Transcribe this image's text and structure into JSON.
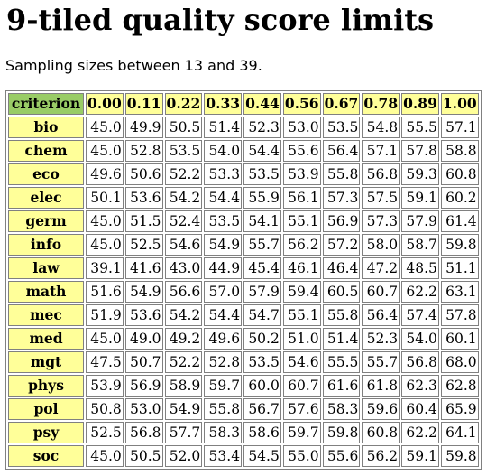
{
  "title": "9-tiled quality score limits",
  "subtitle": "Sampling sizes between 13 and 39.",
  "table": {
    "corner_header": "criterion",
    "columns": [
      "0.00",
      "0.11",
      "0.22",
      "0.33",
      "0.44",
      "0.56",
      "0.67",
      "0.78",
      "0.89",
      "1.00"
    ],
    "rows": [
      {
        "label": "bio",
        "values": [
          "45.0",
          "49.9",
          "50.5",
          "51.4",
          "52.3",
          "53.0",
          "53.5",
          "54.8",
          "55.5",
          "57.1"
        ]
      },
      {
        "label": "chem",
        "values": [
          "45.0",
          "52.8",
          "53.5",
          "54.0",
          "54.4",
          "55.6",
          "56.4",
          "57.1",
          "57.8",
          "58.8"
        ]
      },
      {
        "label": "eco",
        "values": [
          "49.6",
          "50.6",
          "52.2",
          "53.3",
          "53.5",
          "53.9",
          "55.8",
          "56.8",
          "59.3",
          "60.8"
        ]
      },
      {
        "label": "elec",
        "values": [
          "50.1",
          "53.6",
          "54.2",
          "54.4",
          "55.9",
          "56.1",
          "57.3",
          "57.5",
          "59.1",
          "60.2"
        ]
      },
      {
        "label": "germ",
        "values": [
          "45.0",
          "51.5",
          "52.4",
          "53.5",
          "54.1",
          "55.1",
          "56.9",
          "57.3",
          "57.9",
          "61.4"
        ]
      },
      {
        "label": "info",
        "values": [
          "45.0",
          "52.5",
          "54.6",
          "54.9",
          "55.7",
          "56.2",
          "57.2",
          "58.0",
          "58.7",
          "59.8"
        ]
      },
      {
        "label": "law",
        "values": [
          "39.1",
          "41.6",
          "43.0",
          "44.9",
          "45.4",
          "46.1",
          "46.4",
          "47.2",
          "48.5",
          "51.1"
        ]
      },
      {
        "label": "math",
        "values": [
          "51.6",
          "54.9",
          "56.6",
          "57.0",
          "57.9",
          "59.4",
          "60.5",
          "60.7",
          "62.2",
          "63.1"
        ]
      },
      {
        "label": "mec",
        "values": [
          "51.9",
          "53.6",
          "54.2",
          "54.4",
          "54.7",
          "55.1",
          "55.8",
          "56.4",
          "57.4",
          "57.8"
        ]
      },
      {
        "label": "med",
        "values": [
          "45.0",
          "49.0",
          "49.2",
          "49.6",
          "50.2",
          "51.0",
          "51.4",
          "52.3",
          "54.0",
          "60.1"
        ]
      },
      {
        "label": "mgt",
        "values": [
          "47.5",
          "50.7",
          "52.2",
          "52.8",
          "53.5",
          "54.6",
          "55.5",
          "55.7",
          "56.8",
          "68.0"
        ]
      },
      {
        "label": "phys",
        "values": [
          "53.9",
          "56.9",
          "58.9",
          "59.7",
          "60.0",
          "60.7",
          "61.6",
          "61.8",
          "62.3",
          "62.8"
        ]
      },
      {
        "label": "pol",
        "values": [
          "50.8",
          "53.0",
          "54.9",
          "55.8",
          "56.7",
          "57.6",
          "58.3",
          "59.6",
          "60.4",
          "65.9"
        ]
      },
      {
        "label": "psy",
        "values": [
          "52.5",
          "56.8",
          "57.7",
          "58.3",
          "58.6",
          "59.7",
          "59.8",
          "60.8",
          "62.2",
          "64.1"
        ]
      },
      {
        "label": "soc",
        "values": [
          "45.0",
          "50.5",
          "52.0",
          "53.4",
          "54.5",
          "55.0",
          "55.6",
          "56.2",
          "59.1",
          "59.8"
        ]
      }
    ]
  },
  "colors": {
    "header_bg": "#ffff99",
    "corner_bg": "#99cc66",
    "cell_bg": "#ffffff",
    "border": "#808080"
  }
}
